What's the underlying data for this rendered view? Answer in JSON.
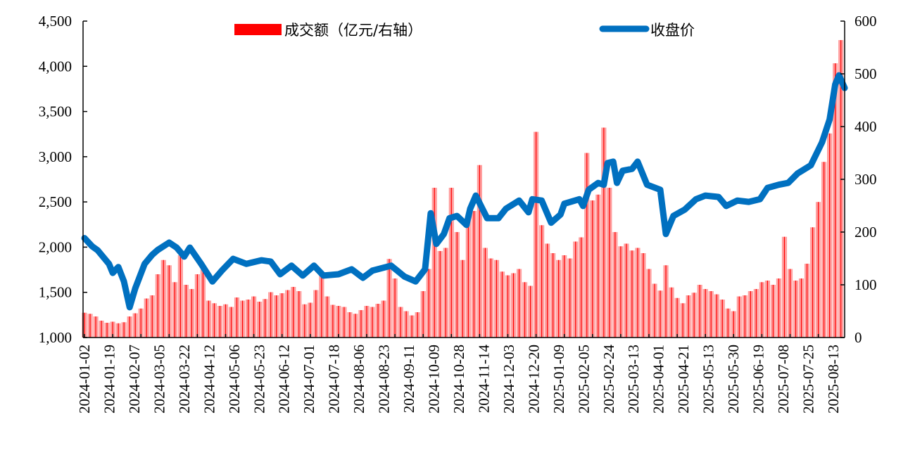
{
  "chart_data": {
    "type": "bar+line",
    "title": "",
    "legend": {
      "placement": "top-center",
      "entries": [
        {
          "label": "成交额（亿元/右轴）",
          "type": "bar",
          "color": "#ff0000"
        },
        {
          "label": "收盘价",
          "type": "line",
          "color": "#0070c0"
        }
      ]
    },
    "x_axis": {
      "type": "trading-day index",
      "range": [
        0,
        404
      ],
      "tick_labels": [
        "2024-01-02",
        "2024-01-19",
        "2024-02-07",
        "2024-03-05",
        "2024-03-22",
        "2024-04-12",
        "2024-05-06",
        "2024-05-23",
        "2024-06-12",
        "2024-07-01",
        "2024-07-18",
        "2024-08-06",
        "2024-08-23",
        "2024-09-11",
        "2024-10-09",
        "2024-10-28",
        "2024-11-14",
        "2024-12-03",
        "2024-12-20",
        "2025-01-09",
        "2025-02-05",
        "2025-02-24",
        "2025-03-13",
        "2025-04-01",
        "2025-04-21",
        "2025-05-13",
        "2025-05-30",
        "2025-06-19",
        "2025-07-08",
        "2025-07-25",
        "2025-08-13"
      ],
      "tick_label_last_index": 398
    },
    "left_axis": {
      "label": "收盘价",
      "ylim": [
        1000,
        4500
      ],
      "ticks": [
        1000,
        1500,
        2000,
        2500,
        3000,
        3500,
        4000,
        4500
      ],
      "tick_labels": [
        "1,000",
        "1,500",
        "2,000",
        "2,500",
        "3,000",
        "3,500",
        "4,000",
        "4,500"
      ]
    },
    "right_axis": {
      "label": "成交额（亿元）",
      "ylim": [
        0,
        600
      ],
      "ticks": [
        0,
        100,
        200,
        300,
        400,
        500,
        600
      ],
      "tick_labels": [
        "0",
        "100",
        "200",
        "300",
        "400",
        "500",
        "600"
      ]
    },
    "series": [
      {
        "name": "成交额（亿元/右轴）",
        "type": "bar",
        "axis": "right",
        "color": "#ff0000",
        "x_step": 3,
        "values": [
          47,
          45,
          40,
          32,
          28,
          30,
          27,
          29,
          40,
          46,
          55,
          74,
          80,
          120,
          147,
          137,
          105,
          156,
          100,
          92,
          120,
          129,
          70,
          65,
          60,
          63,
          58,
          76,
          70,
          72,
          78,
          68,
          73,
          86,
          80,
          84,
          90,
          96,
          88,
          63,
          66,
          90,
          124,
          78,
          62,
          60,
          58,
          48,
          45,
          52,
          60,
          58,
          64,
          70,
          149,
          112,
          58,
          50,
          42,
          48,
          88,
          130,
          284,
          164,
          170,
          284,
          200,
          147,
          227,
          240,
          327,
          170,
          150,
          147,
          125,
          118,
          122,
          130,
          105,
          98,
          390,
          213,
          178,
          160,
          147,
          156,
          150,
          182,
          190,
          350,
          260,
          271,
          398,
          284,
          200,
          173,
          178,
          165,
          170,
          160,
          130,
          102,
          89,
          137,
          95,
          75,
          65,
          80,
          85,
          100,
          92,
          88,
          82,
          72,
          55,
          50,
          78,
          80,
          88,
          92,
          105,
          108,
          100,
          112,
          191,
          130,
          108,
          112,
          140,
          209,
          257,
          333,
          387,
          520,
          564
        ]
      },
      {
        "name": "收盘价",
        "type": "line",
        "axis": "left",
        "color": "#0070c0",
        "points": [
          [
            0,
            2100
          ],
          [
            4,
            2010
          ],
          [
            7,
            1965
          ],
          [
            13,
            1815
          ],
          [
            15,
            1715
          ],
          [
            18,
            1780
          ],
          [
            21,
            1620
          ],
          [
            24,
            1335
          ],
          [
            27,
            1545
          ],
          [
            32,
            1815
          ],
          [
            36,
            1915
          ],
          [
            39,
            1970
          ],
          [
            45,
            2050
          ],
          [
            49,
            1995
          ],
          [
            53,
            1895
          ],
          [
            56,
            1995
          ],
          [
            62,
            1815
          ],
          [
            68,
            1620
          ],
          [
            73,
            1740
          ],
          [
            79,
            1870
          ],
          [
            86,
            1815
          ],
          [
            94,
            1855
          ],
          [
            99,
            1840
          ],
          [
            104,
            1700
          ],
          [
            110,
            1795
          ],
          [
            116,
            1685
          ],
          [
            122,
            1795
          ],
          [
            127,
            1685
          ],
          [
            135,
            1700
          ],
          [
            142,
            1755
          ],
          [
            148,
            1660
          ],
          [
            153,
            1740
          ],
          [
            163,
            1795
          ],
          [
            170,
            1675
          ],
          [
            176,
            1620
          ],
          [
            181,
            1755
          ],
          [
            184,
            2375
          ],
          [
            187,
            2035
          ],
          [
            191,
            2145
          ],
          [
            194,
            2320
          ],
          [
            198,
            2345
          ],
          [
            203,
            2245
          ],
          [
            205,
            2425
          ],
          [
            208,
            2570
          ],
          [
            214,
            2320
          ],
          [
            220,
            2320
          ],
          [
            224,
            2425
          ],
          [
            231,
            2515
          ],
          [
            236,
            2385
          ],
          [
            238,
            2530
          ],
          [
            243,
            2515
          ],
          [
            248,
            2270
          ],
          [
            253,
            2360
          ],
          [
            255,
            2480
          ],
          [
            263,
            2530
          ],
          [
            265,
            2455
          ],
          [
            268,
            2635
          ],
          [
            273,
            2710
          ],
          [
            276,
            2690
          ],
          [
            278,
            2930
          ],
          [
            281,
            2945
          ],
          [
            283,
            2710
          ],
          [
            286,
            2845
          ],
          [
            291,
            2865
          ],
          [
            294,
            2945
          ],
          [
            299,
            2690
          ],
          [
            306,
            2635
          ],
          [
            309,
            2145
          ],
          [
            313,
            2345
          ],
          [
            319,
            2415
          ],
          [
            325,
            2530
          ],
          [
            330,
            2570
          ],
          [
            337,
            2555
          ],
          [
            341,
            2455
          ],
          [
            347,
            2515
          ],
          [
            353,
            2500
          ],
          [
            359,
            2530
          ],
          [
            363,
            2655
          ],
          [
            369,
            2690
          ],
          [
            374,
            2710
          ],
          [
            379,
            2815
          ],
          [
            386,
            2905
          ],
          [
            392,
            3160
          ],
          [
            396,
            3410
          ],
          [
            399,
            3800
          ],
          [
            401,
            3900
          ],
          [
            404,
            3760
          ]
        ]
      }
    ]
  }
}
